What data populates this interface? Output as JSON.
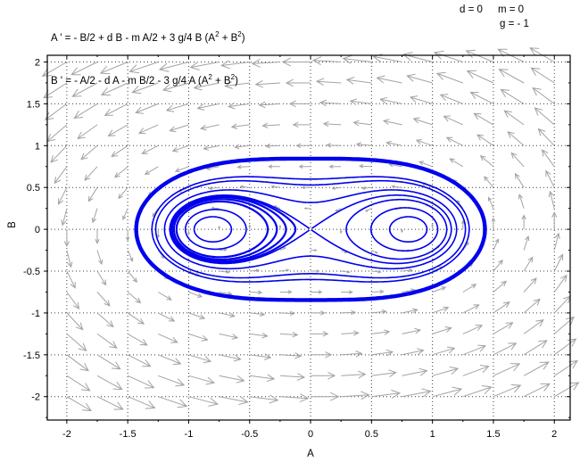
{
  "figure": {
    "background": "#ffffff",
    "equations": {
      "line1": [
        {
          "t": "A ' = - B/2 + d B - m A/2 + 3 g/4 B (A"
        },
        {
          "s": "2"
        },
        {
          "t": " + B"
        },
        {
          "s": "2"
        },
        {
          "t": ")"
        }
      ],
      "line2": [
        {
          "t": "B ' = - A/2 - d A - m B/2 - 3 g/4 A (A"
        },
        {
          "s": "2"
        },
        {
          "t": " + B"
        },
        {
          "s": "2"
        },
        {
          "t": ")"
        }
      ]
    },
    "parameters": {
      "d_label": "d = 0",
      "m_label": "m = 0",
      "g_label": "g = - 1"
    }
  },
  "chart_data": {
    "type": "line",
    "subtype": "phase-portrait-with-quiver",
    "xlabel": "A",
    "ylabel": "B",
    "xlim": [
      -2.16,
      2.13
    ],
    "ylim": [
      -2.28,
      2.08
    ],
    "xticks": [
      -2,
      -1.5,
      -1,
      -0.5,
      0,
      0.5,
      1,
      1.5,
      2
    ],
    "xtick_labels": [
      "-2",
      "-1.5",
      "-1",
      "-0.5",
      "0",
      "0.5",
      "1",
      "1.5",
      "2"
    ],
    "yticks": [
      -2,
      -1.5,
      -1,
      -0.5,
      0,
      0.5,
      1,
      1.5,
      2
    ],
    "ytick_labels": [
      "-2",
      "-1.5",
      "-1",
      "-0.5",
      "0",
      "0.5",
      "1",
      "1.5",
      "2"
    ],
    "minor_tick_step": 0.25,
    "grid": {
      "style": "dotted",
      "color": "#3c3c3c",
      "at_every": 0.5
    },
    "frame_color": "#000000",
    "vector_field": {
      "dA_dt": "-B/2 + d*B - m*A/2 + (3*g/4)*B*(A^2+B^2)",
      "dB_dt": "-A/2 - d*A - m*B/2 - (3*g/4)*A*(A^2+B^2)",
      "params": {
        "d": 0,
        "m": 0,
        "g": -1
      },
      "quiver_grid": {
        "min": -2,
        "max": 2,
        "step": 0.25
      },
      "arrow_color": "#a3a3a3",
      "length_scale": 0.105,
      "length_power": 0.4,
      "length_max": 0.26
    },
    "equilibria": {
      "saddle": [
        0,
        0
      ],
      "centers": [
        [
          -0.8165,
          0
        ],
        [
          0.8165,
          0
        ]
      ]
    },
    "trajectory_color": "#0000ee",
    "trajectories": [
      {
        "name": "outer-orbit-thick",
        "start": [
          0,
          0.845
        ],
        "stroke_width": 4.4
      },
      {
        "name": "outer-orbit-a",
        "start": [
          0,
          0.6
        ],
        "stroke_width": 1.6
      },
      {
        "name": "outer-orbit-b",
        "start": [
          0,
          0.53
        ],
        "stroke_width": 1.6
      },
      {
        "name": "peanut-orbit",
        "start": [
          0,
          0.32
        ],
        "stroke_width": 1.6
      },
      {
        "name": "separatrix-right",
        "start": [
          0.012,
          -0.012
        ],
        "stroke_width": 1.6,
        "to_origin": true
      },
      {
        "name": "separatrix-left",
        "start": [
          -0.012,
          0.012
        ],
        "stroke_width": 1.6,
        "to_origin": true
      },
      {
        "name": "left-bundle-1",
        "start": [
          -1.148,
          0
        ],
        "stroke_width": 2.2
      },
      {
        "name": "left-bundle-2",
        "start": [
          -1.137,
          0
        ],
        "stroke_width": 2.2
      },
      {
        "name": "left-bundle-3",
        "start": [
          -1.121,
          0
        ],
        "stroke_width": 2.2
      },
      {
        "name": "left-bundle-4",
        "start": [
          -1.1,
          0
        ],
        "stroke_width": 2.2
      },
      {
        "name": "left-oval",
        "start": [
          -1.027,
          0
        ],
        "stroke_width": 1.6
      },
      {
        "name": "left-circle",
        "start": [
          -0.955,
          0
        ],
        "stroke_width": 1.6
      },
      {
        "name": "right-lobe",
        "start": [
          1.117,
          0
        ],
        "stroke_width": 1.6
      },
      {
        "name": "right-oval",
        "start": [
          1.043,
          0
        ],
        "stroke_width": 1.6
      },
      {
        "name": "right-circle",
        "start": [
          0.955,
          0
        ],
        "stroke_width": 1.6
      }
    ]
  }
}
